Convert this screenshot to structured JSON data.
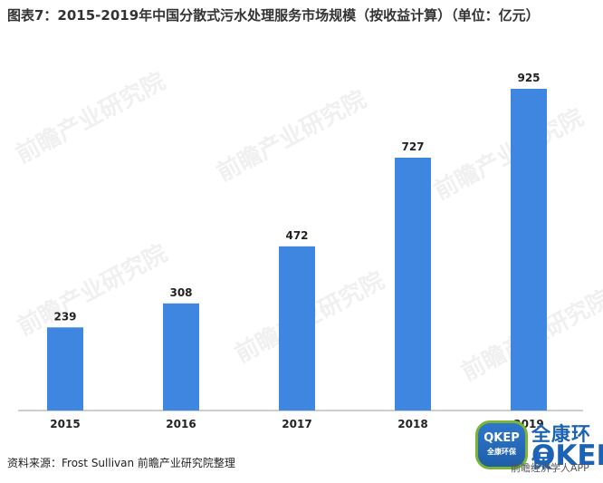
{
  "title": "图表7：2015-2019年中国分散式污水处理服务市场规模（按收益计算）（单位：亿元）",
  "source": "资料来源：Frost Sullivan 前瞻产业研究院整理",
  "colors": {
    "bar": "#3f86e1",
    "axis": "#9f9f9f",
    "text": "#222222"
  },
  "chart_data": {
    "type": "bar",
    "categories": [
      "2015",
      "2016",
      "2017",
      "2018",
      "2019"
    ],
    "values": [
      239,
      308,
      472,
      727,
      925
    ],
    "ylim": [
      0,
      925
    ],
    "grid": false,
    "legend": "none",
    "data_labels": [
      "239",
      "308",
      "472",
      "727",
      "925"
    ]
  },
  "watermarks": {
    "text": "前瞻产业研究院"
  },
  "brand": {
    "badge_title": "QKEP",
    "badge_sub": "全康环保",
    "cn": "全康环保",
    "en": "QKEP",
    "bottom": "前瞻经济学人APP"
  }
}
